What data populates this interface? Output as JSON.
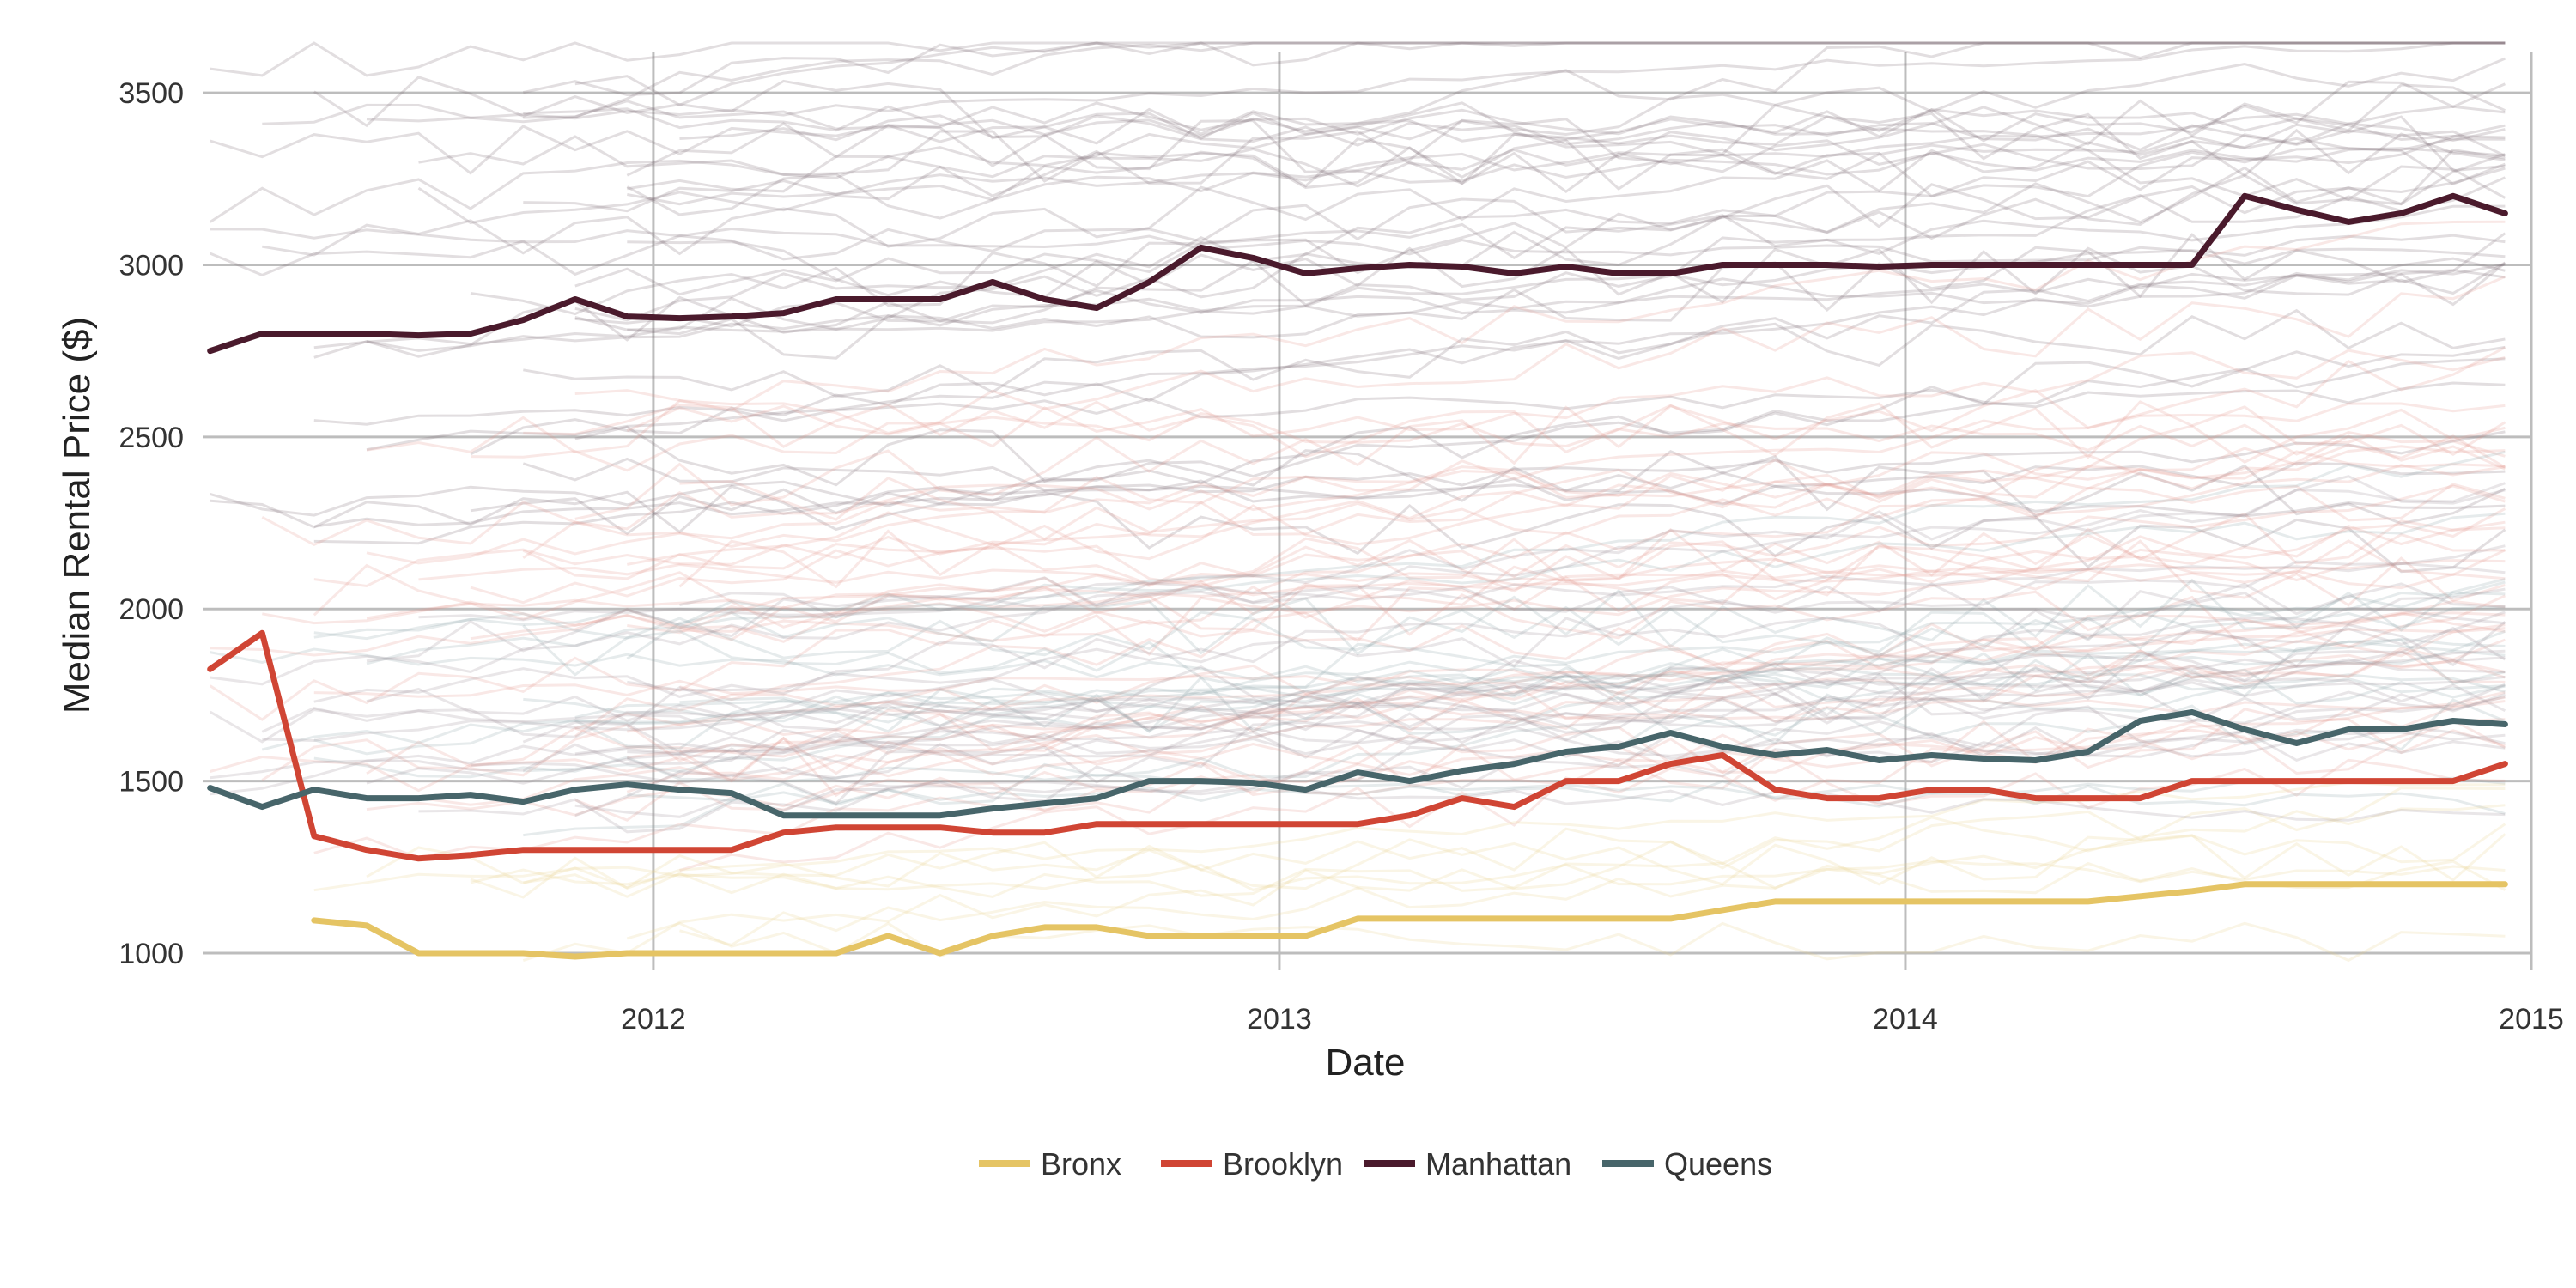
{
  "chart_data": {
    "type": "line",
    "title": "",
    "xlabel": "Date",
    "ylabel": "Median Rental Price ($)",
    "xlim": [
      2011.28,
      2015.0
    ],
    "ylim": [
      950,
      3620
    ],
    "x_ticks": [
      {
        "value": 2012,
        "label": "2012"
      },
      {
        "value": 2013,
        "label": "2013"
      },
      {
        "value": 2014,
        "label": "2014"
      },
      {
        "value": 2015,
        "label": "2015"
      }
    ],
    "y_ticks": [
      {
        "value": 1000,
        "label": "1000"
      },
      {
        "value": 1500,
        "label": "1500"
      },
      {
        "value": 2000,
        "label": "2000"
      },
      {
        "value": 2500,
        "label": "2500"
      },
      {
        "value": 3000,
        "label": "3000"
      },
      {
        "value": 3500,
        "label": "3500"
      }
    ],
    "grid": true,
    "legend_position": "bottom",
    "background_series_note": "many faint neighborhood-level lines colored by borough",
    "series": [
      {
        "name": "Bronx",
        "color": "#E5C464",
        "x": [
          2011.458,
          2011.542,
          2011.625,
          2011.708,
          2011.792,
          2011.875,
          2011.958,
          2012.042,
          2012.125,
          2012.208,
          2012.292,
          2012.375,
          2012.458,
          2012.542,
          2012.625,
          2012.708,
          2012.792,
          2012.875,
          2012.958,
          2013.042,
          2013.125,
          2013.208,
          2013.292,
          2013.375,
          2013.458,
          2013.542,
          2013.625,
          2013.708,
          2013.792,
          2013.875,
          2013.958,
          2014.042,
          2014.125,
          2014.208,
          2014.292,
          2014.375,
          2014.458,
          2014.542,
          2014.625,
          2014.708,
          2014.792,
          2014.875,
          2014.958
        ],
        "values": [
          1095,
          1080,
          1000,
          1000,
          1000,
          990,
          1000,
          1000,
          1000,
          1000,
          1000,
          1050,
          1000,
          1050,
          1075,
          1075,
          1050,
          1050,
          1050,
          1050,
          1100,
          1100,
          1100,
          1100,
          1100,
          1100,
          1100,
          1125,
          1150,
          1150,
          1150,
          1150,
          1150,
          1150,
          1150,
          1165,
          1180,
          1200,
          1200,
          1200,
          1200,
          1200,
          1200
        ]
      },
      {
        "name": "Brooklyn",
        "color": "#D04534",
        "x": [
          2011.292,
          2011.375,
          2011.458,
          2011.542,
          2011.625,
          2011.708,
          2011.792,
          2011.875,
          2011.958,
          2012.042,
          2012.125,
          2012.208,
          2012.292,
          2012.375,
          2012.458,
          2012.542,
          2012.625,
          2012.708,
          2012.792,
          2012.875,
          2012.958,
          2013.042,
          2013.125,
          2013.208,
          2013.292,
          2013.375,
          2013.458,
          2013.542,
          2013.625,
          2013.708,
          2013.792,
          2013.875,
          2013.958,
          2014.042,
          2014.125,
          2014.208,
          2014.292,
          2014.375,
          2014.458,
          2014.542,
          2014.625,
          2014.708,
          2014.792,
          2014.875,
          2014.958
        ],
        "values": [
          1825,
          1930,
          1340,
          1300,
          1275,
          1285,
          1300,
          1300,
          1300,
          1300,
          1300,
          1350,
          1365,
          1365,
          1365,
          1350,
          1350,
          1375,
          1375,
          1375,
          1375,
          1375,
          1375,
          1400,
          1450,
          1425,
          1500,
          1500,
          1550,
          1575,
          1475,
          1450,
          1450,
          1475,
          1475,
          1450,
          1450,
          1450,
          1500,
          1500,
          1500,
          1500,
          1500,
          1500,
          1550
        ]
      },
      {
        "name": "Manhattan",
        "color": "#4A1A2C",
        "x": [
          2011.292,
          2011.375,
          2011.458,
          2011.542,
          2011.625,
          2011.708,
          2011.792,
          2011.875,
          2011.958,
          2012.042,
          2012.125,
          2012.208,
          2012.292,
          2012.375,
          2012.458,
          2012.542,
          2012.625,
          2012.708,
          2012.792,
          2012.875,
          2012.958,
          2013.042,
          2013.125,
          2013.208,
          2013.292,
          2013.375,
          2013.458,
          2013.542,
          2013.625,
          2013.708,
          2013.792,
          2013.875,
          2013.958,
          2014.042,
          2014.125,
          2014.208,
          2014.292,
          2014.375,
          2014.458,
          2014.542,
          2014.625,
          2014.708,
          2014.792,
          2014.875,
          2014.958
        ],
        "values": [
          2750,
          2800,
          2800,
          2800,
          2795,
          2800,
          2840,
          2900,
          2850,
          2845,
          2850,
          2860,
          2900,
          2900,
          2900,
          2950,
          2900,
          2875,
          2950,
          3050,
          3020,
          2975,
          2990,
          3000,
          2995,
          2975,
          2995,
          2975,
          2975,
          3000,
          3000,
          3000,
          2995,
          3000,
          3000,
          3000,
          3000,
          3000,
          3000,
          3200,
          3160,
          3125,
          3150,
          3200,
          3150
        ]
      },
      {
        "name": "Queens",
        "color": "#47656A",
        "x": [
          2011.292,
          2011.375,
          2011.458,
          2011.542,
          2011.625,
          2011.708,
          2011.792,
          2011.875,
          2011.958,
          2012.042,
          2012.125,
          2012.208,
          2012.292,
          2012.375,
          2012.458,
          2012.542,
          2012.625,
          2012.708,
          2012.792,
          2012.875,
          2012.958,
          2013.042,
          2013.125,
          2013.208,
          2013.292,
          2013.375,
          2013.458,
          2013.542,
          2013.625,
          2013.708,
          2013.792,
          2013.875,
          2013.958,
          2014.042,
          2014.125,
          2014.208,
          2014.292,
          2014.375,
          2014.458,
          2014.542,
          2014.625,
          2014.708,
          2014.792,
          2014.875,
          2014.958
        ],
        "values": [
          1480,
          1425,
          1475,
          1450,
          1450,
          1460,
          1440,
          1475,
          1490,
          1475,
          1465,
          1400,
          1400,
          1400,
          1400,
          1420,
          1435,
          1450,
          1500,
          1500,
          1495,
          1475,
          1525,
          1500,
          1530,
          1550,
          1585,
          1600,
          1640,
          1600,
          1575,
          1590,
          1560,
          1575,
          1565,
          1560,
          1585,
          1675,
          1700,
          1650,
          1610,
          1650,
          1650,
          1675,
          1665
        ]
      }
    ]
  }
}
